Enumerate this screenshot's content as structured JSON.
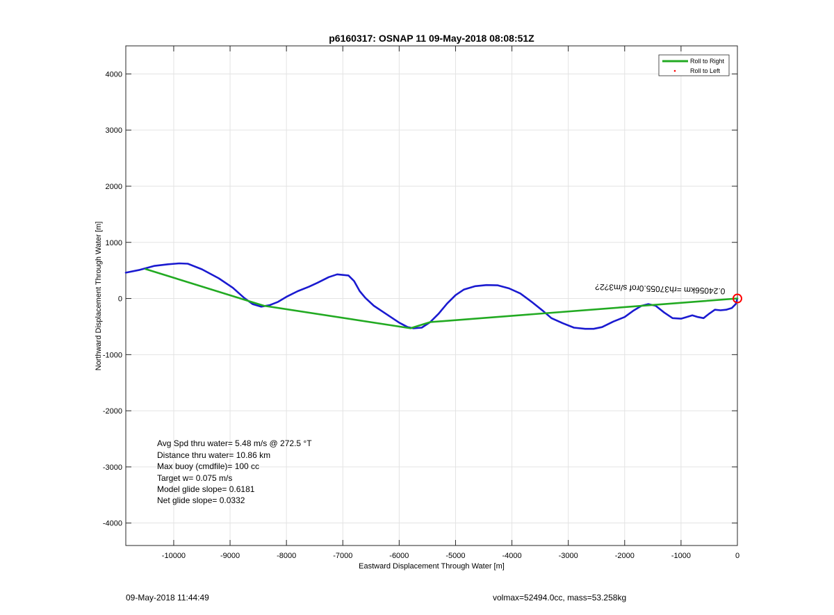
{
  "chart_data": {
    "type": "line",
    "title": "p6160317: OSNAP 11 09-May-2018 08:08:51Z",
    "xlabel": "Eastward Displacement Through Water [m]",
    "ylabel": "Northward Displacement Through Water [m]",
    "xlim": [
      -10850,
      0
    ],
    "ylim": [
      -4400,
      4500
    ],
    "xticks": [
      -10000,
      -9000,
      -8000,
      -7000,
      -6000,
      -5000,
      -4000,
      -3000,
      -2000,
      -1000,
      0
    ],
    "yticks": [
      -4000,
      -3000,
      -2000,
      -1000,
      0,
      1000,
      2000,
      3000,
      4000
    ],
    "grid": true,
    "legend": {
      "placement": "top-right",
      "entries": [
        {
          "label": "Roll to Right",
          "color": "#22aa22",
          "marker": "line"
        },
        {
          "label": "Roll to Left",
          "color": "#ff0000",
          "marker": "dot"
        }
      ]
    },
    "series": [
      {
        "color": "#1a1ad0",
        "points": [
          [
            -10850,
            460
          ],
          [
            -10600,
            510
          ],
          [
            -10350,
            580
          ],
          [
            -10100,
            610
          ],
          [
            -9900,
            625
          ],
          [
            -9750,
            620
          ],
          [
            -9500,
            520
          ],
          [
            -9200,
            360
          ],
          [
            -8950,
            190
          ],
          [
            -8750,
            10
          ],
          [
            -8600,
            -100
          ],
          [
            -8450,
            -145
          ],
          [
            -8300,
            -120
          ],
          [
            -8150,
            -60
          ],
          [
            -8000,
            30
          ],
          [
            -7800,
            130
          ],
          [
            -7600,
            210
          ],
          [
            -7450,
            280
          ],
          [
            -7250,
            380
          ],
          [
            -7100,
            430
          ],
          [
            -6900,
            410
          ],
          [
            -6800,
            310
          ],
          [
            -6700,
            130
          ],
          [
            -6600,
            10
          ],
          [
            -6450,
            -130
          ],
          [
            -6300,
            -230
          ],
          [
            -6150,
            -330
          ],
          [
            -6000,
            -430
          ],
          [
            -5850,
            -510
          ],
          [
            -5750,
            -530
          ],
          [
            -5600,
            -520
          ],
          [
            -5450,
            -420
          ],
          [
            -5300,
            -270
          ],
          [
            -5150,
            -90
          ],
          [
            -5000,
            60
          ],
          [
            -4850,
            160
          ],
          [
            -4650,
            220
          ],
          [
            -4450,
            240
          ],
          [
            -4250,
            235
          ],
          [
            -4050,
            180
          ],
          [
            -3850,
            90
          ],
          [
            -3650,
            -60
          ],
          [
            -3450,
            -220
          ],
          [
            -3300,
            -350
          ],
          [
            -3100,
            -440
          ],
          [
            -2900,
            -520
          ],
          [
            -2700,
            -540
          ],
          [
            -2550,
            -540
          ],
          [
            -2400,
            -510
          ],
          [
            -2200,
            -410
          ],
          [
            -2000,
            -330
          ],
          [
            -1850,
            -220
          ],
          [
            -1700,
            -130
          ],
          [
            -1580,
            -100
          ],
          [
            -1450,
            -130
          ],
          [
            -1300,
            -250
          ],
          [
            -1150,
            -350
          ],
          [
            -1000,
            -360
          ],
          [
            -900,
            -330
          ],
          [
            -800,
            -300
          ],
          [
            -700,
            -330
          ],
          [
            -600,
            -350
          ],
          [
            -500,
            -270
          ],
          [
            -400,
            -200
          ],
          [
            -300,
            -210
          ],
          [
            -200,
            -200
          ],
          [
            -100,
            -170
          ],
          [
            -30,
            -100
          ],
          [
            0,
            0
          ]
        ]
      },
      {
        "name": "Roll to Right",
        "color": "#22aa22",
        "points": [
          [
            -10500,
            525
          ],
          [
            -8400,
            -130
          ],
          [
            -5800,
            -530
          ],
          [
            -5450,
            -420
          ],
          [
            0,
            0
          ]
        ]
      }
    ],
    "end_marker": {
      "x": 0,
      "y": 0,
      "color": "#ff0000"
    },
    "annotations": [
      {
        "text": "0.24056km =rh37055.0rof s/m3?2?",
        "rotated": true
      },
      {
        "text": "Avg Spd thru water=  5.48 m/s @ 272.5 °T"
      },
      {
        "text": "Distance thru water= 10.86 km"
      },
      {
        "text": "Max buoy (cmdfile)= 100 cc"
      },
      {
        "text": "Target w= 0.075 m/s"
      },
      {
        "text": "Model glide slope= 0.6181"
      },
      {
        "text": "Net glide slope= 0.0332"
      }
    ]
  },
  "footer": {
    "left": "09-May-2018 11:44:49",
    "right": "volmax=52494.0cc, mass=53.258kg"
  }
}
